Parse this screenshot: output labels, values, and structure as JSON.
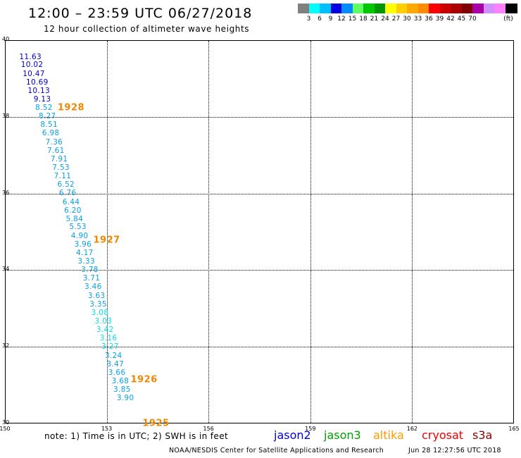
{
  "header": {
    "title": "12:00 – 23:59 UTC 06/27/2018",
    "subtitle": "12 hour collection of altimeter wave heights"
  },
  "colorbar": {
    "colors": [
      "#808080",
      "#00ffff",
      "#00bfff",
      "#0000e0",
      "#008cff",
      "#60ff60",
      "#00c800",
      "#009600",
      "#ffff00",
      "#ffd000",
      "#ffaa00",
      "#ff8c00",
      "#ff0000",
      "#cc0000",
      "#aa0000",
      "#800000",
      "#aa00aa",
      "#d090ff",
      "#ff80ff",
      "#000000"
    ],
    "labels": [
      "3",
      "6",
      "9",
      "12",
      "15",
      "18",
      "21",
      "24",
      "27",
      "30",
      "33",
      "36",
      "39",
      "42",
      "45",
      "70",
      "(ft)"
    ]
  },
  "map": {
    "lon_ticks": [
      "150",
      "153",
      "156",
      "159",
      "162",
      "165"
    ],
    "lat_ticks": [
      "40",
      "38",
      "36",
      "34",
      "32",
      "30"
    ],
    "lon_range": [
      150,
      165
    ],
    "lat_range": [
      30,
      40
    ],
    "grid": true
  },
  "observations": [
    {
      "swh": "11.63",
      "lon": 150.75,
      "lat": 39.56,
      "color": "#0000c8"
    },
    {
      "swh": "10.02",
      "lon": 150.8,
      "lat": 39.35,
      "color": "#0000c8"
    },
    {
      "swh": "10.47",
      "lon": 150.85,
      "lat": 39.12,
      "color": "#0000c8"
    },
    {
      "swh": "10.69",
      "lon": 150.95,
      "lat": 38.9,
      "color": "#0000c8"
    },
    {
      "swh": "10.13",
      "lon": 151.0,
      "lat": 38.68,
      "color": "#0000c8"
    },
    {
      "swh": "9.13",
      "lon": 151.1,
      "lat": 38.46,
      "color": "#0000c8"
    },
    {
      "swh": "8.52",
      "lon": 151.15,
      "lat": 38.23,
      "color": "#0aa0e6"
    },
    {
      "swh": "8.27",
      "lon": 151.25,
      "lat": 38.01,
      "color": "#0aa0e6"
    },
    {
      "swh": "8.51",
      "lon": 151.3,
      "lat": 37.79,
      "color": "#0aa0e6"
    },
    {
      "swh": "6.98",
      "lon": 151.35,
      "lat": 37.57,
      "color": "#0aa0e6"
    },
    {
      "swh": "7.36",
      "lon": 151.45,
      "lat": 37.34,
      "color": "#0aa0e6"
    },
    {
      "swh": "7.61",
      "lon": 151.5,
      "lat": 37.12,
      "color": "#0aa0e6"
    },
    {
      "swh": "7.91",
      "lon": 151.6,
      "lat": 36.9,
      "color": "#0aa0e6"
    },
    {
      "swh": "7.53",
      "lon": 151.65,
      "lat": 36.68,
      "color": "#0aa0e6"
    },
    {
      "swh": "7.11",
      "lon": 151.7,
      "lat": 36.45,
      "color": "#0aa0e6"
    },
    {
      "swh": "6.52",
      "lon": 151.8,
      "lat": 36.23,
      "color": "#0aa0e6"
    },
    {
      "swh": "6.76",
      "lon": 151.85,
      "lat": 36.01,
      "color": "#0aa0e6"
    },
    {
      "swh": "6.44",
      "lon": 151.95,
      "lat": 35.78,
      "color": "#0aa0e6"
    },
    {
      "swh": "6.20",
      "lon": 152.0,
      "lat": 35.56,
      "color": "#0aa0e6"
    },
    {
      "swh": "5.84",
      "lon": 152.05,
      "lat": 35.34,
      "color": "#0aa0e6"
    },
    {
      "swh": "5.53",
      "lon": 152.15,
      "lat": 35.12,
      "color": "#0aa0e6"
    },
    {
      "swh": "4.90",
      "lon": 152.2,
      "lat": 34.89,
      "color": "#0aa0e6"
    },
    {
      "swh": "3.96",
      "lon": 152.3,
      "lat": 34.67,
      "color": "#0aa0e6"
    },
    {
      "swh": "4.17",
      "lon": 152.35,
      "lat": 34.45,
      "color": "#0aa0e6"
    },
    {
      "swh": "3.33",
      "lon": 152.4,
      "lat": 34.23,
      "color": "#0aa0e6"
    },
    {
      "swh": "3.78",
      "lon": 152.5,
      "lat": 34.0,
      "color": "#0aa0e6"
    },
    {
      "swh": "3.71",
      "lon": 152.55,
      "lat": 33.78,
      "color": "#0aa0e6"
    },
    {
      "swh": "3.46",
      "lon": 152.6,
      "lat": 33.56,
      "color": "#0aa0e6"
    },
    {
      "swh": "3.63",
      "lon": 152.7,
      "lat": 33.33,
      "color": "#0aa0e6"
    },
    {
      "swh": "3.35",
      "lon": 152.75,
      "lat": 33.11,
      "color": "#0aa0e6"
    },
    {
      "swh": "3.08",
      "lon": 152.8,
      "lat": 32.89,
      "color": "#00e0f0"
    },
    {
      "swh": "3.03",
      "lon": 152.9,
      "lat": 32.67,
      "color": "#00e0f0"
    },
    {
      "swh": "3.42",
      "lon": 152.95,
      "lat": 32.44,
      "color": "#00e0f0"
    },
    {
      "swh": "3.16",
      "lon": 153.05,
      "lat": 32.22,
      "color": "#00e0f0"
    },
    {
      "swh": "3.27",
      "lon": 153.1,
      "lat": 32.0,
      "color": "#00e0f0"
    },
    {
      "swh": "3.24",
      "lon": 153.2,
      "lat": 31.77,
      "color": "#0aa0e6"
    },
    {
      "swh": "3.47",
      "lon": 153.25,
      "lat": 31.55,
      "color": "#0aa0e6"
    },
    {
      "swh": "3.66",
      "lon": 153.3,
      "lat": 31.33,
      "color": "#0aa0e6"
    },
    {
      "swh": "3.68",
      "lon": 153.4,
      "lat": 31.11,
      "color": "#0aa0e6"
    },
    {
      "swh": "3.85",
      "lon": 153.45,
      "lat": 30.88,
      "color": "#0aa0e6"
    },
    {
      "swh": "3.90",
      "lon": 153.55,
      "lat": 30.66,
      "color": "#0aa0e6"
    }
  ],
  "time_labels": [
    {
      "text": "1928",
      "lon": 151.95,
      "lat": 38.23
    },
    {
      "text": "1927",
      "lon": 153.0,
      "lat": 34.78
    },
    {
      "text": "1926",
      "lon": 154.1,
      "lat": 31.14
    },
    {
      "text": "1925",
      "lon": 154.45,
      "lat": 30.0
    }
  ],
  "time_label_color": "#ee8800",
  "footer": {
    "note": "note: 1) Time is in UTC; 2) SWH is in feet",
    "legend": [
      {
        "name": "jason2",
        "color": "#0000dd"
      },
      {
        "name": "jason3",
        "color": "#00a000"
      },
      {
        "name": "altika",
        "color": "#ff9900"
      },
      {
        "name": "cryosat",
        "color": "#ee0000"
      },
      {
        "name": "s3a",
        "color": "#880000"
      }
    ],
    "credit": "NOAA/NESDIS Center for Satellite Applications and Research",
    "timestamp": "Jun 28 12:27:56 UTC 2018"
  }
}
